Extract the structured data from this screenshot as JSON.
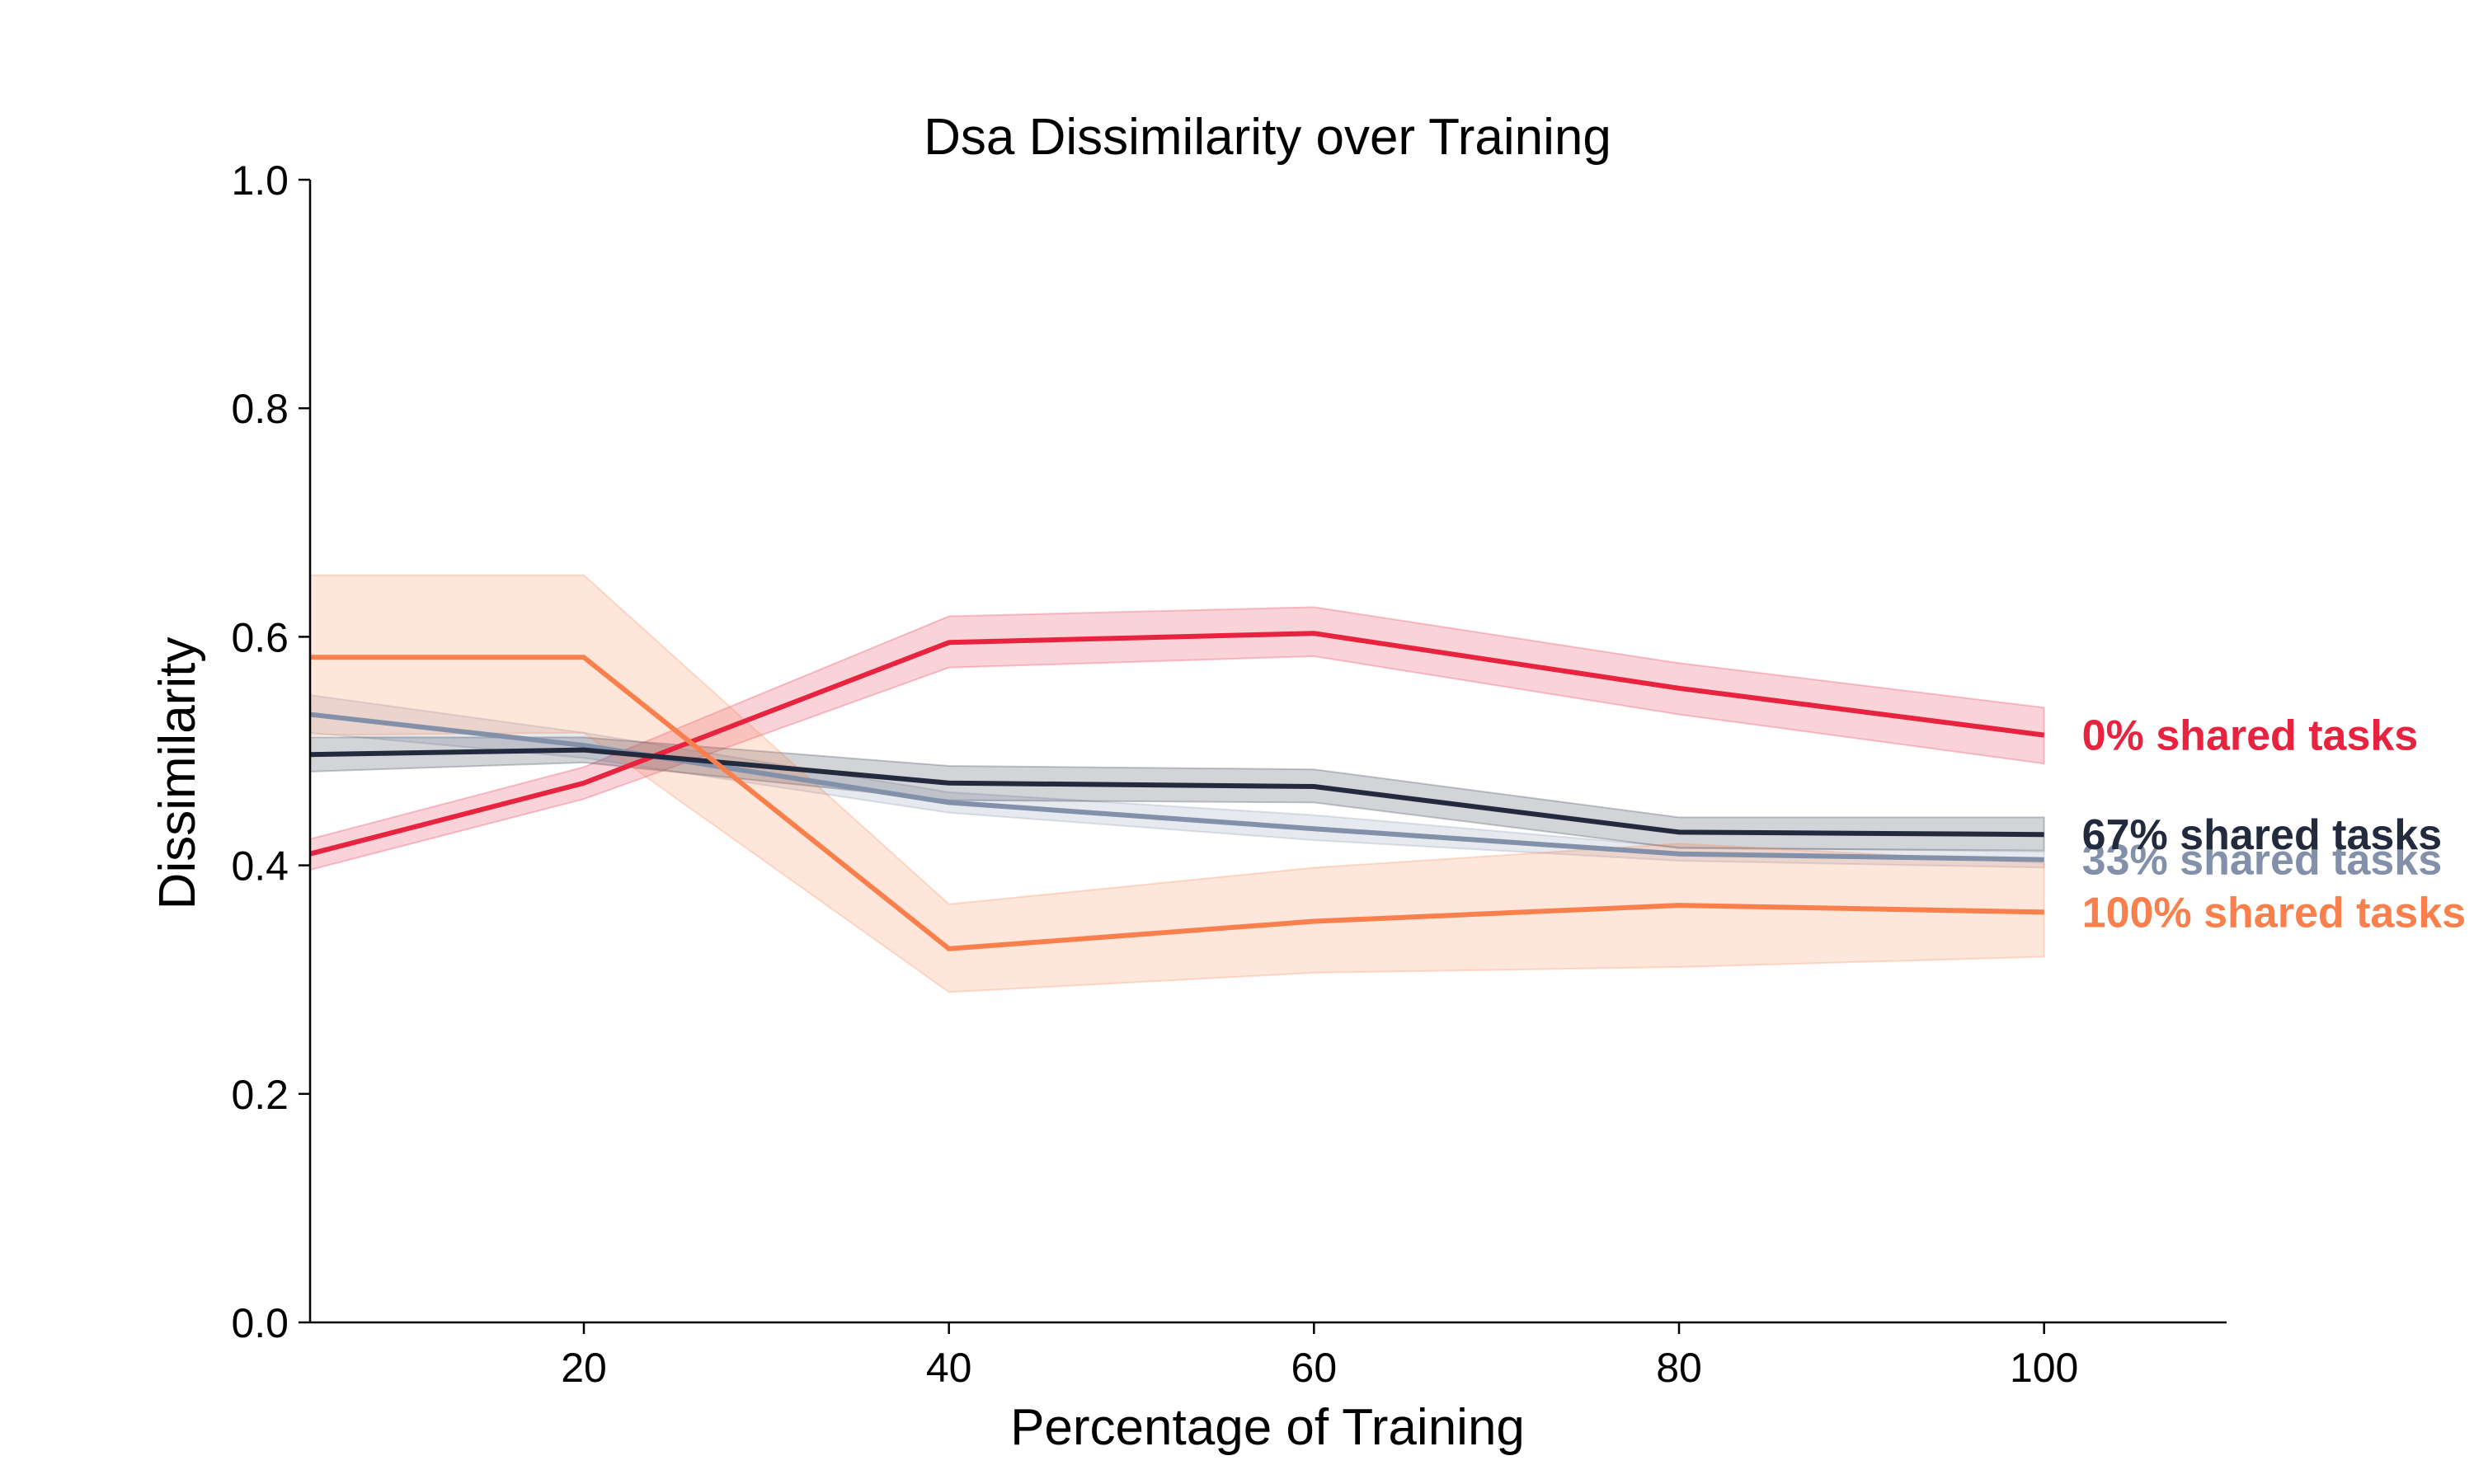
{
  "chart_data": {
    "type": "line",
    "title": "Dsa Dissimilarity over Training",
    "xlabel": "Percentage of Training",
    "ylabel": "Dissimilarity",
    "xlim": [
      5,
      110
    ],
    "ylim": [
      0.0,
      1.0
    ],
    "xticks": [
      20,
      40,
      60,
      80,
      100
    ],
    "xtick_labels": [
      "20",
      "40",
      "60",
      "80",
      "100"
    ],
    "yticks": [
      0.0,
      0.2,
      0.4,
      0.6,
      0.8,
      1.0
    ],
    "ytick_labels": [
      "0.0",
      "0.2",
      "0.4",
      "0.6",
      "0.8",
      "1.0"
    ],
    "grid": false,
    "legend": "inline labels at right end of each line",
    "x": [
      5,
      20,
      40,
      60,
      80,
      100
    ],
    "series": [
      {
        "name": "0% shared tasks",
        "color": "#e8233f",
        "values": [
          0.41,
          0.472,
          0.595,
          0.603,
          0.555,
          0.514
        ],
        "lower": [
          0.396,
          0.458,
          0.573,
          0.583,
          0.532,
          0.489
        ],
        "upper": [
          0.423,
          0.486,
          0.618,
          0.626,
          0.577,
          0.538
        ]
      },
      {
        "name": "33% shared tasks",
        "color": "#8290a9",
        "values": [
          0.532,
          0.505,
          0.455,
          0.432,
          0.41,
          0.405
        ],
        "lower": [
          0.516,
          0.494,
          0.446,
          0.422,
          0.404,
          0.398
        ],
        "upper": [
          0.549,
          0.516,
          0.464,
          0.444,
          0.416,
          0.412
        ]
      },
      {
        "name": "67% shared tasks",
        "color": "#232a3e",
        "values": [
          0.497,
          0.501,
          0.472,
          0.469,
          0.429,
          0.427
        ],
        "lower": [
          0.482,
          0.49,
          0.457,
          0.455,
          0.415,
          0.413
        ],
        "upper": [
          0.512,
          0.512,
          0.487,
          0.484,
          0.442,
          0.442
        ]
      },
      {
        "name": "100% shared tasks",
        "color": "#f9804d",
        "values": [
          0.582,
          0.582,
          0.327,
          0.351,
          0.365,
          0.359
        ],
        "lower": [
          0.514,
          0.516,
          0.289,
          0.306,
          0.311,
          0.32
        ],
        "upper": [
          0.654,
          0.654,
          0.366,
          0.398,
          0.419,
          0.402
        ]
      }
    ]
  }
}
